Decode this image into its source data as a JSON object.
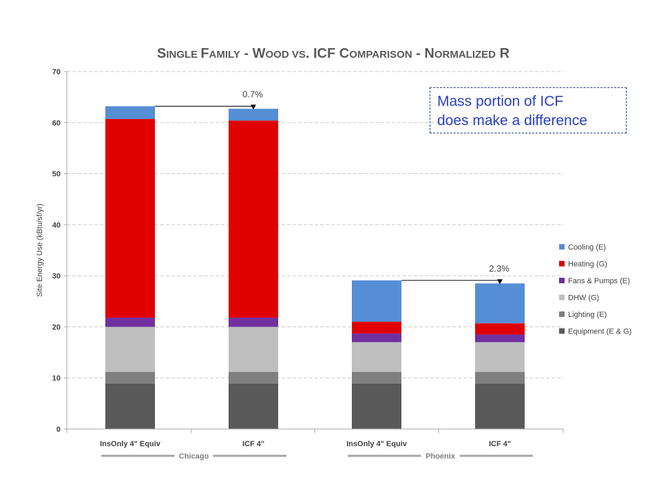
{
  "chart_data": {
    "type": "bar",
    "stacked": true,
    "title_parts": [
      {
        "t": "S",
        "big": true
      },
      {
        "t": "INGLE ",
        "big": false
      },
      {
        "t": "F",
        "big": true
      },
      {
        "t": "AMILY",
        "big": false
      },
      {
        "t": " - ",
        "big": true
      },
      {
        "t": "W",
        "big": true
      },
      {
        "t": "OOD VS",
        "big": false
      },
      {
        "t": ". ICF ",
        "big": true
      },
      {
        "t": "C",
        "big": true
      },
      {
        "t": "OMPARISON",
        "big": false
      },
      {
        "t": " - ",
        "big": true
      },
      {
        "t": "N",
        "big": true
      },
      {
        "t": "ORMALIZED",
        "big": false
      },
      {
        "t": " R",
        "big": true
      }
    ],
    "ylabel": "Site Energy Use (kBtu/sf/yr)",
    "ylim": [
      0,
      70
    ],
    "yticks": [
      0,
      10,
      20,
      30,
      40,
      50,
      60,
      70
    ],
    "grid": true,
    "legend_position": "right",
    "categories": [
      "InsOnly 4\" Equiv",
      "ICF 4\"",
      "InsOnly 4\" Equiv",
      "ICF 4\""
    ],
    "groups": [
      {
        "name": "Chicago",
        "categories": [
          0,
          1
        ]
      },
      {
        "name": "Phoenix",
        "categories": [
          2,
          3
        ]
      }
    ],
    "series": [
      {
        "name": "Equipment (E & G)",
        "color": "#595959",
        "values": [
          8.9,
          8.9,
          8.9,
          8.9
        ]
      },
      {
        "name": "Lighting (E)",
        "color": "#7f7f7f",
        "values": [
          2.3,
          2.3,
          2.3,
          2.3
        ]
      },
      {
        "name": "DHW (G)",
        "color": "#bfbfbf",
        "values": [
          8.8,
          8.8,
          5.8,
          5.8
        ]
      },
      {
        "name": "Fans & Pumps (E)",
        "color": "#7030a0",
        "values": [
          1.8,
          1.8,
          1.7,
          1.5
        ]
      },
      {
        "name": "Heating (G)",
        "color": "#e00000",
        "values": [
          38.9,
          38.6,
          2.3,
          2.2
        ]
      },
      {
        "name": "Cooling (E)",
        "color": "#558ed5",
        "values": [
          2.5,
          2.3,
          8.1,
          7.8
        ]
      }
    ],
    "annotations": [
      {
        "text": "0.7%",
        "from": 0,
        "to": 1
      },
      {
        "text": "2.3%",
        "from": 2,
        "to": 3
      }
    ]
  },
  "note": {
    "line1": "Mass portion of ICF",
    "line2": "does make a difference"
  }
}
